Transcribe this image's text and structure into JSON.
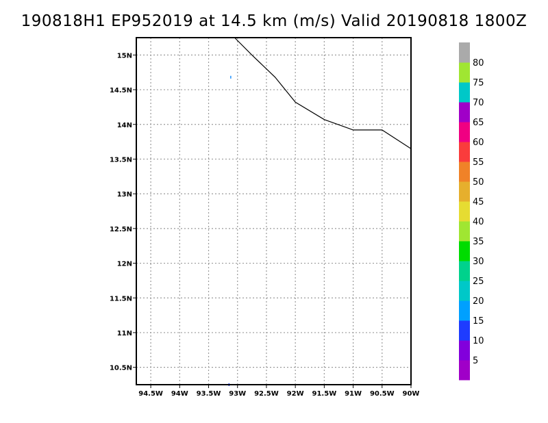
{
  "title": "190818H1 EP952019 at 14.5 km (m/s) Valid 20190818 1800Z",
  "map": {
    "lon_range": [
      -94.75,
      -90.0
    ],
    "lat_range": [
      10.25,
      15.25
    ],
    "x_ticks": [
      {
        "value": -94.5,
        "label": "94.5W"
      },
      {
        "value": -94.0,
        "label": "94W"
      },
      {
        "value": -93.5,
        "label": "93.5W"
      },
      {
        "value": -93.0,
        "label": "93W"
      },
      {
        "value": -92.5,
        "label": "92.5W"
      },
      {
        "value": -92.0,
        "label": "92W"
      },
      {
        "value": -91.5,
        "label": "91.5W"
      },
      {
        "value": -91.0,
        "label": "91W"
      },
      {
        "value": -90.5,
        "label": "90.5W"
      },
      {
        "value": -90.0,
        "label": "90W"
      }
    ],
    "y_ticks": [
      {
        "value": 10.5,
        "label": "10.5N"
      },
      {
        "value": 11.0,
        "label": "11N"
      },
      {
        "value": 11.5,
        "label": "11.5N"
      },
      {
        "value": 12.0,
        "label": "12N"
      },
      {
        "value": 12.5,
        "label": "12.5N"
      },
      {
        "value": 13.0,
        "label": "13N"
      },
      {
        "value": 13.5,
        "label": "13.5N"
      },
      {
        "value": 14.0,
        "label": "14N"
      },
      {
        "value": 14.5,
        "label": "14.5N"
      },
      {
        "value": 15.0,
        "label": "15N"
      }
    ],
    "grid": "dotted",
    "coastline": [
      [
        -93.05,
        15.25
      ],
      [
        -92.75,
        15.0
      ],
      [
        -92.35,
        14.68
      ],
      [
        -92.0,
        14.32
      ],
      [
        -91.5,
        14.07
      ],
      [
        -91.0,
        13.92
      ],
      [
        -90.5,
        13.92
      ],
      [
        -90.0,
        13.65
      ]
    ],
    "specks": [
      {
        "lon": -93.12,
        "lat": 14.68,
        "color": "#1e90ff"
      },
      {
        "lon": -93.15,
        "lat": 10.25,
        "color": "#1e3cff"
      }
    ]
  },
  "colorbar": {
    "segments": [
      {
        "color": "#a000c8"
      },
      {
        "color": "#8200dc"
      },
      {
        "color": "#1e3cff"
      },
      {
        "color": "#00a0ff"
      },
      {
        "color": "#00c8c8"
      },
      {
        "color": "#00d28c"
      },
      {
        "color": "#00dc00"
      },
      {
        "color": "#a0e632"
      },
      {
        "color": "#e6dc32"
      },
      {
        "color": "#e6af2d"
      },
      {
        "color": "#f08228"
      },
      {
        "color": "#fa3c3c"
      },
      {
        "color": "#f00082"
      },
      {
        "color": "#a000c8"
      },
      {
        "color": "#00c8c8"
      },
      {
        "color": "#a0e632"
      },
      {
        "color": "#aaaaaa"
      }
    ],
    "labels": [
      "5",
      "10",
      "15",
      "20",
      "25",
      "30",
      "35",
      "40",
      "45",
      "50",
      "55",
      "60",
      "65",
      "70",
      "75",
      "80"
    ]
  }
}
